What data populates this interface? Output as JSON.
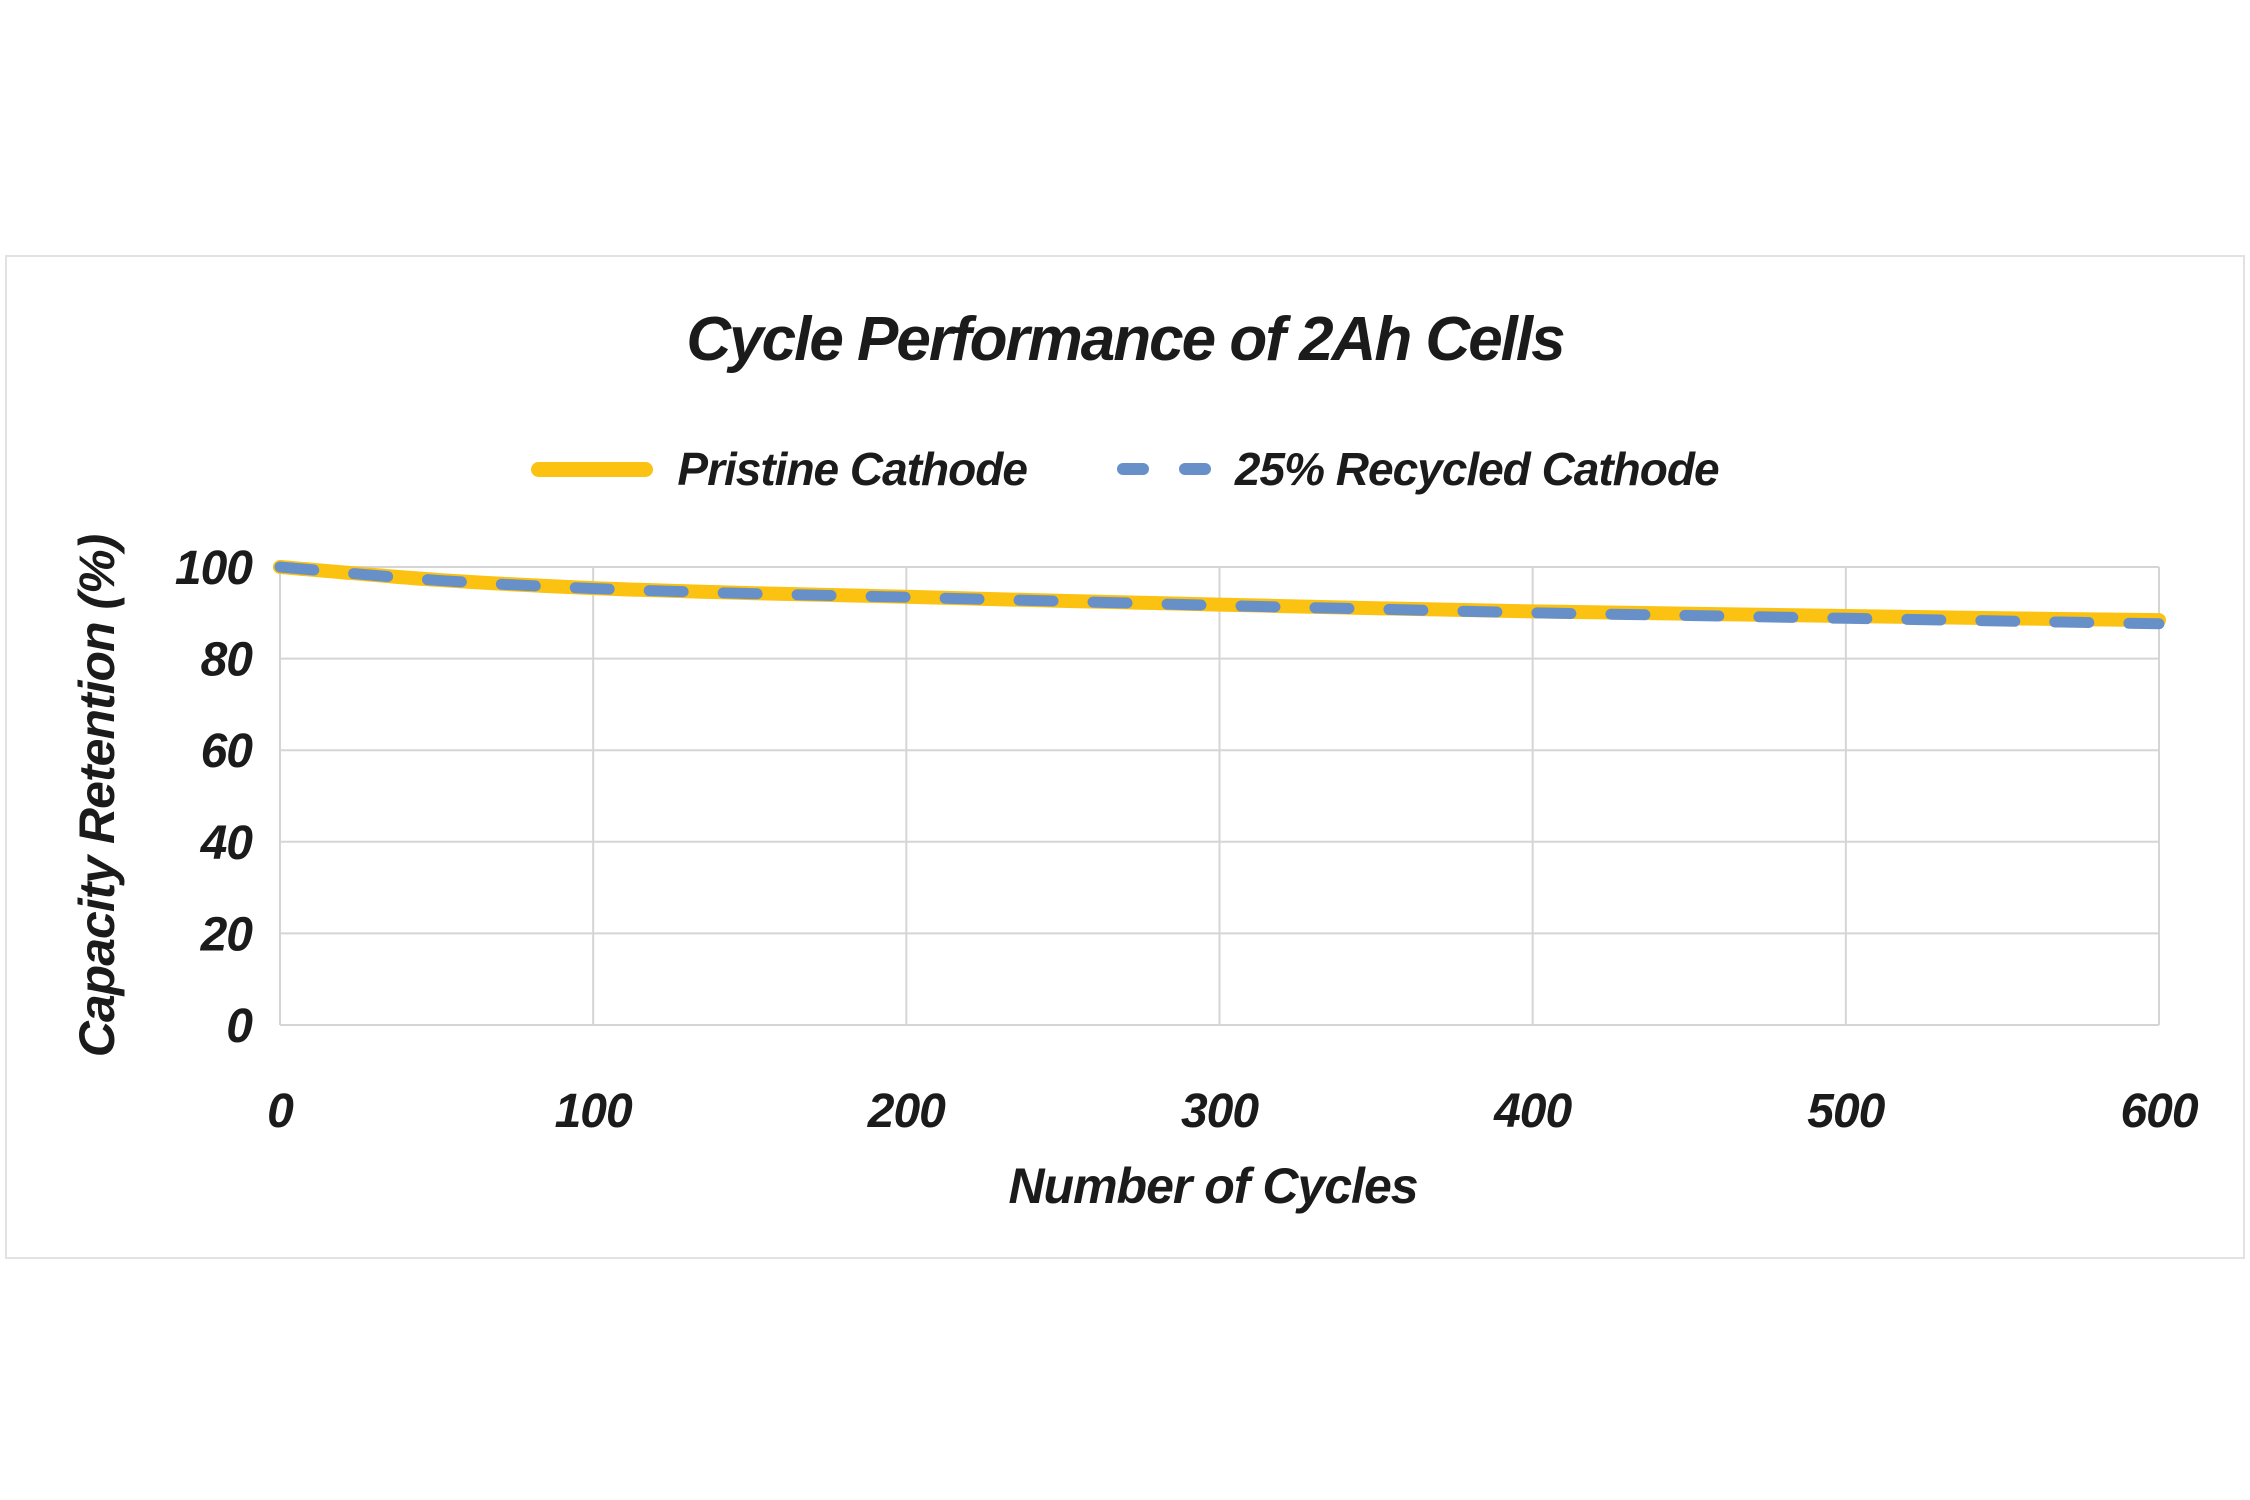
{
  "chart": {
    "title": "Cycle Performance of 2Ah Cells",
    "x_axis_title": "Number of Cycles",
    "y_axis_title": "Capacity Retention (%)"
  },
  "legend": {
    "items": [
      {
        "label": "Pristine Cathode",
        "style": "solid"
      },
      {
        "label": "25% Recycled Cathode",
        "style": "dashed"
      }
    ]
  },
  "colors": {
    "pristine_yellow": "#FCC211",
    "recycled_blue": "#6890C8",
    "gridline": "#D5D5D5",
    "text": "#1B1B1B",
    "card_border": "#E2E2E2",
    "background": "#FFFFFF"
  },
  "chart_data": {
    "type": "line",
    "title": "Cycle Performance of 2Ah Cells",
    "xlabel": "Number of Cycles",
    "ylabel": "Capacity Retention (%)",
    "xlim": [
      0,
      600
    ],
    "ylim": [
      0,
      100
    ],
    "x_ticks": [
      0,
      100,
      200,
      300,
      400,
      500,
      600
    ],
    "y_ticks": [
      0,
      20,
      40,
      60,
      80,
      100
    ],
    "grid": true,
    "legend_position": "top",
    "series": [
      {
        "name": "Pristine Cathode",
        "color": "#FCC211",
        "line_style": "solid",
        "line_width": 14,
        "x": [
          0,
          50,
          100,
          150,
          200,
          250,
          300,
          350,
          400,
          450,
          500,
          550,
          600
        ],
        "y": [
          100,
          97.2,
          95.4,
          94.3,
          93.5,
          92.6,
          91.8,
          91.0,
          90.3,
          89.8,
          89.3,
          88.8,
          88.4
        ]
      },
      {
        "name": "25% Recycled Cathode",
        "color": "#6890C8",
        "line_style": "dashed",
        "line_width": 11,
        "x": [
          0,
          50,
          100,
          150,
          200,
          250,
          300,
          350,
          400,
          450,
          500,
          550,
          600
        ],
        "y": [
          100,
          97.1,
          95.3,
          94.2,
          93.4,
          92.5,
          91.6,
          90.8,
          90.0,
          89.4,
          88.8,
          88.2,
          87.6
        ]
      }
    ]
  }
}
